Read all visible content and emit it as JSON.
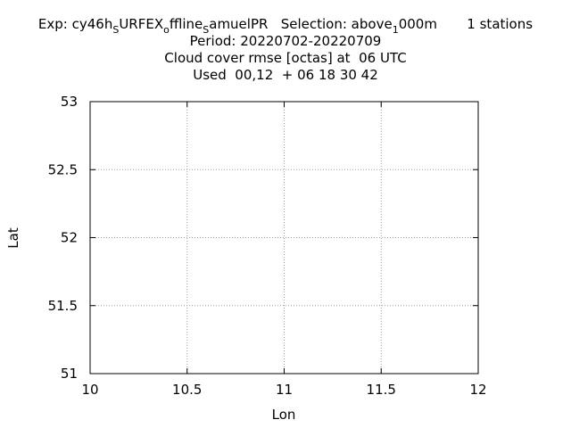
{
  "title": {
    "line1": {
      "p1": "Exp: cy46h",
      "s1": "S",
      "p2": "URFEX",
      "s2": "o",
      "p3": "ffline",
      "s3": "S",
      "p4": "amuelPR   Selection: above",
      "s4": "1",
      "p5": "000m       1 stations"
    },
    "line2": "Period: 20220702-20220709",
    "line3": "Cloud cover rmse [octas] at  06 UTC",
    "line4": "Used  00,12  + 06 18 30 42"
  },
  "chart_data": {
    "type": "scatter",
    "title": "Cloud cover rmse [octas] at  06 UTC",
    "xlabel": "Lon",
    "ylabel": "Lat",
    "xlim": [
      10,
      12
    ],
    "ylim": [
      51,
      53
    ],
    "xticks": [
      10,
      10.5,
      11,
      11.5,
      12
    ],
    "yticks": [
      51,
      51.5,
      52,
      52.5,
      53
    ],
    "xtick_labels": [
      "10",
      "10.5",
      "11",
      "11.5",
      "12"
    ],
    "ytick_labels": [
      "51",
      "51.5",
      "52",
      "52.5",
      "53"
    ],
    "grid": true,
    "series": [],
    "colors": {
      "grid": "#a0a0a0",
      "axes": "#000000"
    }
  }
}
